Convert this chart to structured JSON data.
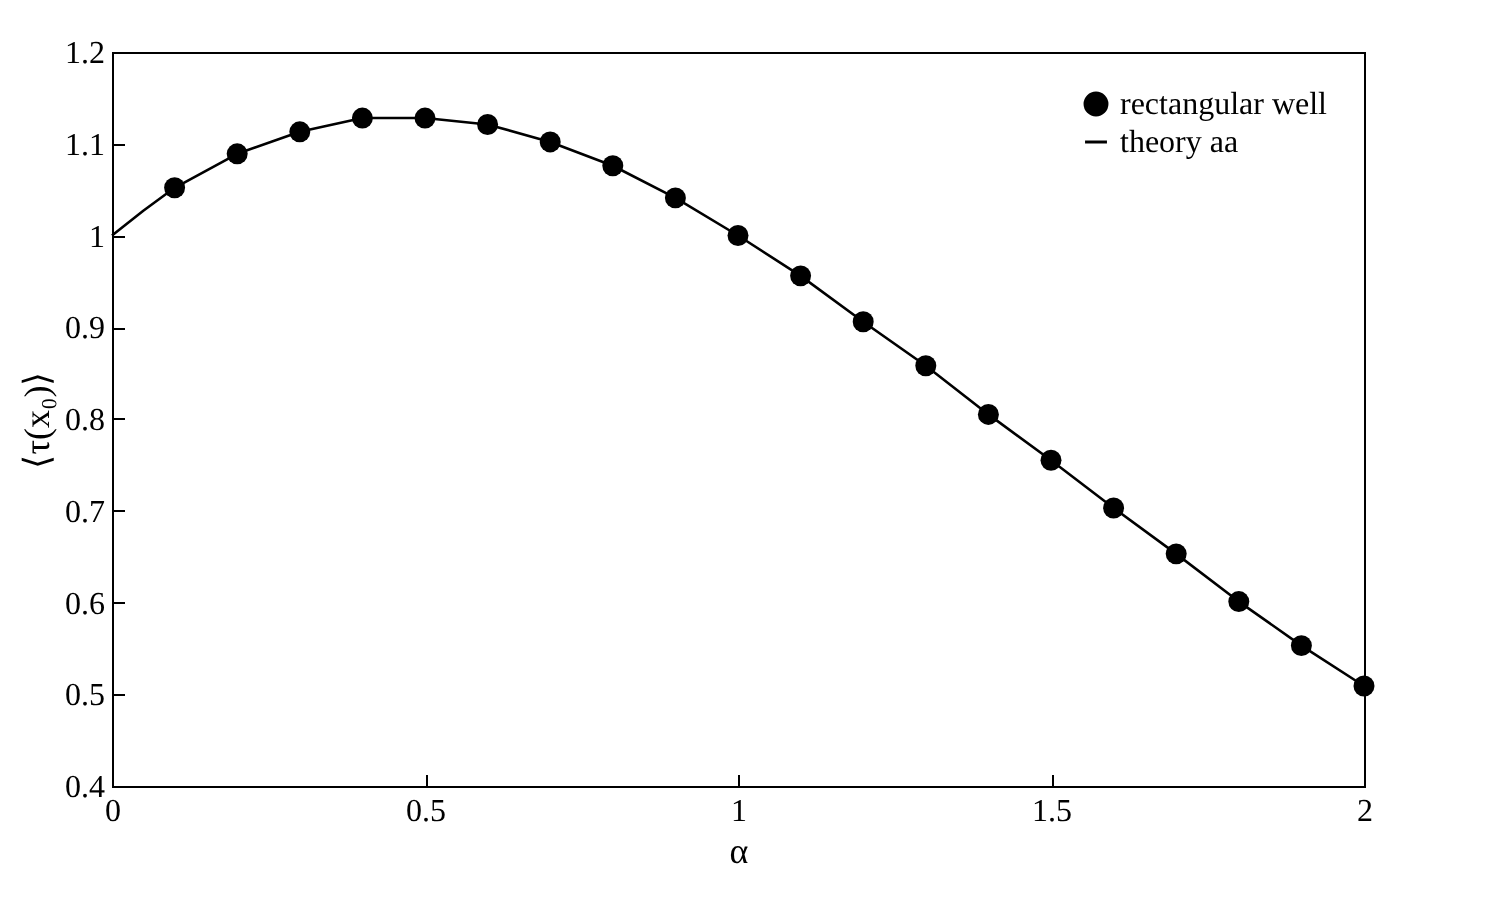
{
  "chart_data": {
    "type": "scatter",
    "xlabel": "α",
    "ylabel": "⟨τ(x₀)⟩",
    "xlim": [
      0,
      2
    ],
    "ylim": [
      0.4,
      1.2
    ],
    "xticks": [
      0,
      0.5,
      1,
      1.5,
      2
    ],
    "yticks": [
      0.4,
      0.5,
      0.6,
      0.7,
      0.8,
      0.9,
      1,
      1.1,
      1.2
    ],
    "grid": false,
    "legend": "top right",
    "series": [
      {
        "name": "rectangular well",
        "marker": "circle",
        "color": "#000000",
        "x": [
          0.1,
          0.2,
          0.3,
          0.4,
          0.5,
          0.6,
          0.7,
          0.8,
          0.9,
          1.0,
          1.1,
          1.2,
          1.3,
          1.4,
          1.5,
          1.6,
          1.7,
          1.8,
          1.9,
          2.0
        ],
        "values": [
          1.052,
          1.089,
          1.113,
          1.128,
          1.128,
          1.121,
          1.102,
          1.076,
          1.041,
          1.0,
          0.956,
          0.906,
          0.858,
          0.805,
          0.755,
          0.703,
          0.653,
          0.601,
          0.553,
          0.509
        ]
      },
      {
        "name": "theory aa",
        "type": "line",
        "line_style": "solid",
        "color": "#000000",
        "x": [
          0,
          0.05,
          0.1,
          0.2,
          0.3,
          0.4,
          0.5,
          0.6,
          0.7,
          0.8,
          0.9,
          1.0,
          1.1,
          1.2,
          1.3,
          1.4,
          1.5,
          1.6,
          1.7,
          1.8,
          1.9,
          2.0
        ],
        "values": [
          1.0,
          1.027,
          1.052,
          1.089,
          1.113,
          1.128,
          1.128,
          1.121,
          1.102,
          1.076,
          1.041,
          1.0,
          0.956,
          0.906,
          0.858,
          0.805,
          0.755,
          0.703,
          0.653,
          0.601,
          0.553,
          0.509
        ]
      }
    ]
  }
}
